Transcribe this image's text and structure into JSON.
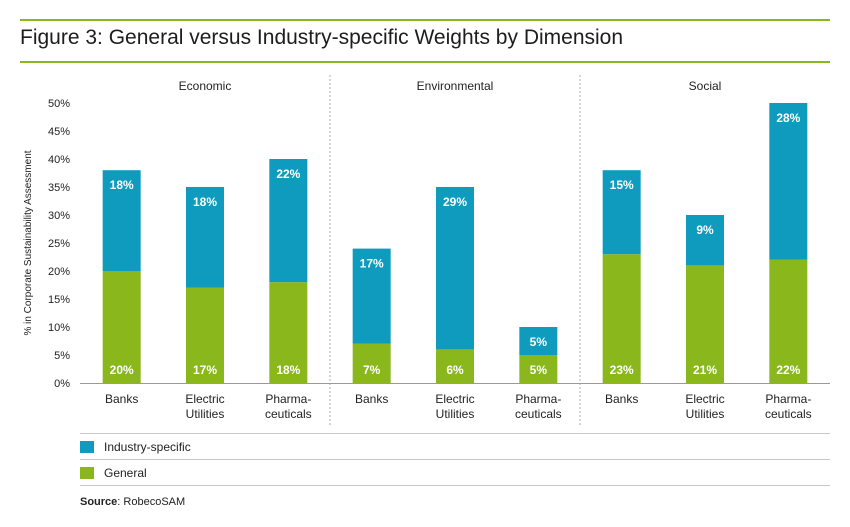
{
  "title": "Figure 3: General versus Industry-specific Weights by Dimension",
  "source_label": "Source",
  "source_value": ": RobecoSAM",
  "colors": {
    "industry": "#0f9bbd",
    "general": "#8ab81c",
    "accent": "#8ab81c"
  },
  "chart_data": {
    "type": "bar",
    "stacked": true,
    "ylabel": "% in Corporate Sustainability Assessment",
    "ylim": [
      0,
      50
    ],
    "yticks": [
      "0%",
      "5%",
      "10%",
      "15%",
      "20%",
      "25%",
      "30%",
      "35%",
      "40%",
      "45%",
      "50%"
    ],
    "groups": [
      "Economic",
      "Environmental",
      "Social"
    ],
    "categories": [
      [
        "Banks"
      ],
      [
        "Electric",
        "Utilities"
      ],
      [
        "Pharma-",
        "ceuticals"
      ],
      [
        "Banks"
      ],
      [
        "Electric",
        "Utilities"
      ],
      [
        "Pharma-",
        "ceuticals"
      ],
      [
        "Banks"
      ],
      [
        "Electric",
        "Utilities"
      ],
      [
        "Pharma-",
        "ceuticals"
      ]
    ],
    "series": [
      {
        "name": "General",
        "values": [
          20,
          17,
          18,
          7,
          6,
          5,
          23,
          21,
          22
        ],
        "labels": [
          "20%",
          "17%",
          "18%",
          "7%",
          "6%",
          "5%",
          "23%",
          "21%",
          "22%"
        ]
      },
      {
        "name": "Industry-specific",
        "values": [
          18,
          18,
          22,
          17,
          29,
          5,
          15,
          9,
          28
        ],
        "labels": [
          "18%",
          "18%",
          "22%",
          "17%",
          "29%",
          "5%",
          "15%",
          "9%",
          "28%"
        ]
      }
    ],
    "legend": [
      "Industry-specific",
      "General"
    ],
    "legend_position": "bottom-left"
  }
}
